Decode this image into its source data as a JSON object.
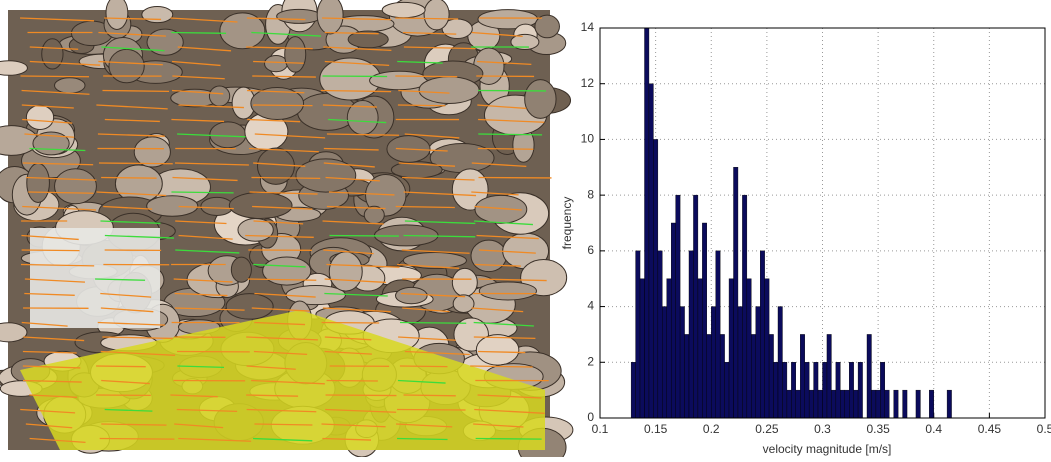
{
  "chart_data": {
    "type": "histogram",
    "xlabel": "velocity magnitude [m/s]",
    "ylabel": "frequency",
    "bins": [
      0.128,
      0.132,
      0.136,
      0.14,
      0.144,
      0.148,
      0.152,
      0.156,
      0.16,
      0.164,
      0.168,
      0.172,
      0.176,
      0.18,
      0.184,
      0.188,
      0.192,
      0.196,
      0.2,
      0.204,
      0.208,
      0.212,
      0.216,
      0.22,
      0.224,
      0.228,
      0.232,
      0.236,
      0.24,
      0.244,
      0.248,
      0.252,
      0.256,
      0.26,
      0.264,
      0.268,
      0.272,
      0.276,
      0.28,
      0.284,
      0.288,
      0.292,
      0.296,
      0.3,
      0.304,
      0.308,
      0.312,
      0.316,
      0.32,
      0.324,
      0.328,
      0.332,
      0.336,
      0.34,
      0.344,
      0.348,
      0.352,
      0.356,
      0.36,
      0.364,
      0.368,
      0.372,
      0.376,
      0.38,
      0.384,
      0.388,
      0.392,
      0.396,
      0.4,
      0.404,
      0.408,
      0.412,
      0.416
    ],
    "counts": [
      2,
      6,
      5,
      14,
      12,
      10,
      6,
      4,
      5,
      7,
      8,
      4,
      3,
      6,
      8,
      5,
      7,
      3,
      4,
      6,
      3,
      2,
      5,
      9,
      4,
      8,
      5,
      3,
      4,
      6,
      5,
      3,
      2,
      4,
      2,
      1,
      2,
      1,
      3,
      2,
      1,
      2,
      1,
      2,
      3,
      1,
      2,
      1,
      1,
      2,
      1,
      2,
      0,
      3,
      1,
      1,
      2,
      1,
      0,
      1,
      0,
      1,
      0,
      0,
      1,
      0,
      0,
      1,
      0,
      0,
      0,
      1
    ],
    "color": "#0b0b5c",
    "xlim": [
      0.1,
      0.5
    ],
    "ylim": [
      0,
      14
    ],
    "xticks": [
      0.1,
      0.15,
      0.2,
      0.25,
      0.3,
      0.35,
      0.4,
      0.45,
      0.5
    ],
    "yticks": [
      0,
      2,
      4,
      6,
      8,
      10,
      12,
      14
    ],
    "grid": true
  }
}
